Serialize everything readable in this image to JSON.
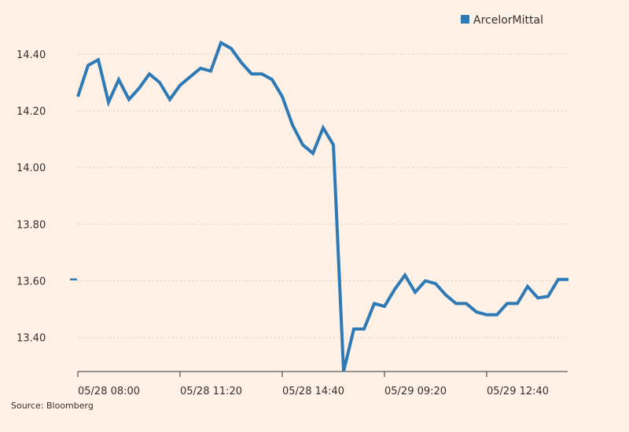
{
  "chart_data": {
    "type": "line",
    "title": "",
    "xlabel": "",
    "ylabel": "",
    "ylim": [
      13.28,
      14.48
    ],
    "y_ticks": [
      13.4,
      13.6,
      13.8,
      14.0,
      14.2,
      14.4
    ],
    "y_tick_labels": [
      "13.40",
      "13.60",
      "13.80",
      "14.00",
      "14.20",
      "14.40"
    ],
    "x_tick_labels": [
      "05/28 08:00",
      "05/28 11:20",
      "05/28 14:40",
      "05/29 09:20",
      "05/29 12:40"
    ],
    "x_tick_index": [
      0,
      10,
      20,
      30,
      40
    ],
    "grid": "horizontal dotted",
    "legend_position": "top-right",
    "last_value_marker": 13.605,
    "series": [
      {
        "name": "ArcelorMittal",
        "color": "#2e7ab6",
        "values": [
          14.25,
          14.36,
          14.38,
          14.23,
          14.31,
          14.24,
          14.28,
          14.33,
          14.3,
          14.24,
          14.29,
          14.32,
          14.35,
          14.34,
          14.44,
          14.42,
          14.37,
          14.33,
          14.33,
          14.31,
          14.25,
          14.15,
          14.08,
          14.05,
          14.14,
          14.08,
          13.28,
          13.43,
          13.43,
          13.52,
          13.51,
          13.57,
          13.62,
          13.56,
          13.6,
          13.59,
          13.55,
          13.52,
          13.52,
          13.49,
          13.48,
          13.48,
          13.52,
          13.52,
          13.58,
          13.54,
          13.545,
          13.605,
          13.605
        ]
      }
    ]
  },
  "source": "Source: Bloomberg"
}
